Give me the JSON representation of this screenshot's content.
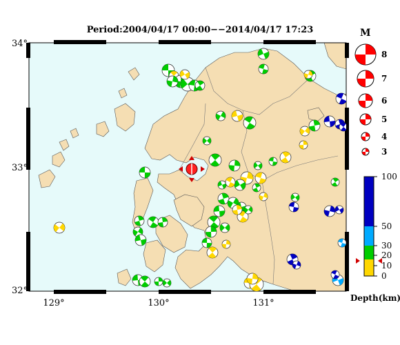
{
  "title": "Period:2004/04/17 00:00−−2014/04/17 17:23",
  "axes": {
    "lon_ticks": [
      "129°",
      "130°",
      "131°"
    ],
    "lat_ticks": [
      "34°",
      "33°",
      "32°"
    ]
  },
  "magnitude_legend": {
    "title": "M",
    "levels": [
      "8",
      "7",
      "6",
      "5",
      "4",
      "3"
    ]
  },
  "depth_legend": {
    "title": "Depth(km)",
    "ticks": [
      "100",
      "50",
      "30",
      "20",
      "10",
      "0"
    ]
  },
  "colors": {
    "sea": "#e6fafa",
    "land": "#f5deb3",
    "shallow": "#00cc00",
    "mid": "#ffd700",
    "deep": "#0000c0",
    "mid_deep": "#00aaff",
    "highlight": "#ff0000"
  }
}
